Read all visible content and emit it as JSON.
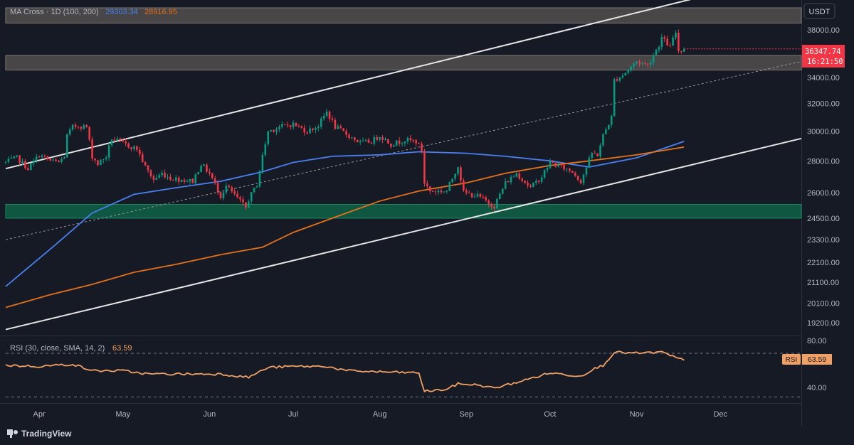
{
  "header": {
    "indicator_label": "MA Cross · 1D (100, 200)",
    "ma100_value": "29303.34",
    "ma200_value": "28916.95",
    "currency": "USDT"
  },
  "price_badge": {
    "price": "36347.74",
    "countdown": "16:21:50"
  },
  "rsi_panel": {
    "label": "RSI (30, close, SMA, 14, 2)",
    "value": "63.59",
    "badge_label": "RSI",
    "badge_value": "63.59",
    "upper_band_label": "80.00",
    "lower_band_label": "40.00"
  },
  "footer": {
    "brand": "TradingView"
  },
  "colors": {
    "background": "#161a25",
    "up": "#089981",
    "down": "#f23645",
    "ma100": "#4a7ff0",
    "ma200": "#e3701b",
    "rsi": "#f0a064",
    "channel": "#e6e6e6",
    "resistance_zone": "#5a5553",
    "support_zone": "#0e5e44"
  },
  "chart_data": {
    "type": "candlestick",
    "symbol_quote": "USDT",
    "timeframe": "1D",
    "y_axis_ticks": [
      "38000.00",
      "34000.00",
      "32000.00",
      "30000.00",
      "28000.00",
      "26000.00",
      "24500.00",
      "23300.00",
      "22100.00",
      "21100.00",
      "20100.00",
      "19200.00"
    ],
    "x_axis_ticks": [
      "Apr",
      "May",
      "Jun",
      "Jul",
      "Aug",
      "Sep",
      "Oct",
      "Nov",
      "Dec"
    ],
    "x_axis_dates": [
      "2023-04-01",
      "2023-05-01",
      "2023-06-01",
      "2023-07-01",
      "2023-08-01",
      "2023-09-01",
      "2023-10-01",
      "2023-11-01",
      "2023-12-01"
    ],
    "x_range": [
      "2023-03-20",
      "2023-12-30"
    ],
    "y_range": [
      18700,
      40200
    ],
    "log_scale": true,
    "grid": false,
    "price_path": [
      [
        "2023-03-20",
        27900
      ],
      [
        "2023-03-24",
        28200
      ],
      [
        "2023-03-28",
        27500
      ],
      [
        "2023-04-01",
        28400
      ],
      [
        "2023-04-05",
        28000
      ],
      [
        "2023-04-08",
        27900
      ],
      [
        "2023-04-10",
        28300
      ],
      [
        "2023-04-11",
        29700
      ],
      [
        "2023-04-13",
        30300
      ],
      [
        "2023-04-15",
        30400
      ],
      [
        "2023-04-18",
        30300
      ],
      [
        "2023-04-20",
        28300
      ],
      [
        "2023-04-22",
        27800
      ],
      [
        "2023-04-25",
        28300
      ],
      [
        "2023-04-27",
        29500
      ],
      [
        "2023-04-30",
        29250
      ],
      [
        "2023-05-03",
        29000
      ],
      [
        "2023-05-06",
        28800
      ],
      [
        "2023-05-09",
        27600
      ],
      [
        "2023-05-12",
        26800
      ],
      [
        "2023-05-15",
        27200
      ],
      [
        "2023-05-18",
        26900
      ],
      [
        "2023-05-22",
        26800
      ],
      [
        "2023-05-26",
        26700
      ],
      [
        "2023-05-29",
        27800
      ],
      [
        "2023-06-01",
        27200
      ],
      [
        "2023-06-05",
        25800
      ],
      [
        "2023-06-07",
        26400
      ],
      [
        "2023-06-10",
        25850
      ],
      [
        "2023-06-14",
        25100
      ],
      [
        "2023-06-15",
        25600
      ],
      [
        "2023-06-18",
        26500
      ],
      [
        "2023-06-20",
        28300
      ],
      [
        "2023-06-22",
        30000
      ],
      [
        "2023-06-26",
        30300
      ],
      [
        "2023-07-01",
        30500
      ],
      [
        "2023-07-06",
        30000
      ],
      [
        "2023-07-10",
        30400
      ],
      [
        "2023-07-13",
        31400
      ],
      [
        "2023-07-16",
        30300
      ],
      [
        "2023-07-20",
        29800
      ],
      [
        "2023-07-25",
        29200
      ],
      [
        "2023-07-29",
        29300
      ],
      [
        "2023-08-01",
        29700
      ],
      [
        "2023-08-05",
        29100
      ],
      [
        "2023-08-10",
        29400
      ],
      [
        "2023-08-14",
        29300
      ],
      [
        "2023-08-16",
        28700
      ],
      [
        "2023-08-17",
        26600
      ],
      [
        "2023-08-19",
        26100
      ],
      [
        "2023-08-25",
        26100
      ],
      [
        "2023-08-29",
        27700
      ],
      [
        "2023-08-31",
        26000
      ],
      [
        "2023-09-05",
        25800
      ],
      [
        "2023-09-11",
        25200
      ],
      [
        "2023-09-15",
        26600
      ],
      [
        "2023-09-19",
        27200
      ],
      [
        "2023-09-24",
        26300
      ],
      [
        "2023-09-28",
        27000
      ],
      [
        "2023-10-01",
        27900
      ],
      [
        "2023-10-05",
        27600
      ],
      [
        "2023-10-09",
        27300
      ],
      [
        "2023-10-12",
        26700
      ],
      [
        "2023-10-16",
        28500
      ],
      [
        "2023-10-18",
        28400
      ],
      [
        "2023-10-20",
        29700
      ],
      [
        "2023-10-23",
        31000
      ],
      [
        "2023-10-24",
        33800
      ],
      [
        "2023-10-27",
        34200
      ],
      [
        "2023-11-01",
        35300
      ],
      [
        "2023-11-05",
        35000
      ],
      [
        "2023-11-09",
        36700
      ],
      [
        "2023-11-10",
        37300
      ],
      [
        "2023-11-13",
        36500
      ],
      [
        "2023-11-15",
        37800
      ],
      [
        "2023-11-16",
        36200
      ],
      [
        "2023-11-18",
        36347.74
      ]
    ],
    "series": [
      {
        "name": "MA 100",
        "color": "#4a7ff0",
        "last": 29303.34,
        "points": [
          [
            "2023-03-20",
            20900
          ],
          [
            "2023-04-05",
            22800
          ],
          [
            "2023-04-20",
            24800
          ],
          [
            "2023-05-05",
            25900
          ],
          [
            "2023-05-20",
            26300
          ],
          [
            "2023-06-05",
            26700
          ],
          [
            "2023-06-20",
            27300
          ],
          [
            "2023-07-01",
            27900
          ],
          [
            "2023-07-15",
            28300
          ],
          [
            "2023-08-01",
            28400
          ],
          [
            "2023-08-15",
            28600
          ],
          [
            "2023-09-01",
            28500
          ],
          [
            "2023-09-15",
            28300
          ],
          [
            "2023-10-01",
            28000
          ],
          [
            "2023-10-15",
            27600
          ],
          [
            "2023-11-01",
            28200
          ],
          [
            "2023-11-18",
            29303.34
          ]
        ]
      },
      {
        "name": "MA 200",
        "color": "#e3701b",
        "last": 28916.95,
        "points": [
          [
            "2023-03-20",
            19900
          ],
          [
            "2023-04-05",
            20500
          ],
          [
            "2023-04-20",
            21000
          ],
          [
            "2023-05-05",
            21600
          ],
          [
            "2023-05-20",
            22000
          ],
          [
            "2023-06-05",
            22500
          ],
          [
            "2023-06-20",
            22900
          ],
          [
            "2023-07-01",
            23700
          ],
          [
            "2023-07-15",
            24500
          ],
          [
            "2023-08-01",
            25500
          ],
          [
            "2023-08-15",
            26100
          ],
          [
            "2023-09-01",
            26600
          ],
          [
            "2023-09-15",
            27200
          ],
          [
            "2023-10-01",
            27700
          ],
          [
            "2023-10-15",
            28000
          ],
          [
            "2023-11-01",
            28400
          ],
          [
            "2023-11-18",
            28916.95
          ]
        ]
      }
    ],
    "channel_lines": [
      {
        "role": "upper",
        "from": [
          "2023-03-20",
          27500
        ],
        "to": [
          "2023-12-01",
          41500
        ]
      },
      {
        "role": "lower",
        "from": [
          "2023-03-20",
          18900
        ],
        "to": [
          "2023-12-30",
          29500
        ]
      },
      {
        "role": "mid-dotted",
        "from": [
          "2023-03-20",
          23300
        ],
        "to": [
          "2023-12-30",
          35300
        ]
      }
    ],
    "zones": [
      {
        "role": "resistance",
        "y_from": 38600,
        "y_to": 40000
      },
      {
        "role": "resistance",
        "y_from": 34600,
        "y_to": 35800
      },
      {
        "role": "support",
        "y_from": 24500,
        "y_to": 25300
      }
    ],
    "rsi": {
      "label": "RSI (30, close, SMA, 14, 2)",
      "last": 63.59,
      "y_ticks": [
        "80.00",
        "40.00"
      ],
      "band_upper": 70,
      "band_lower": 30,
      "y_range": [
        25,
        85
      ],
      "points": [
        [
          "2023-03-20",
          59
        ],
        [
          "2023-04-01",
          58
        ],
        [
          "2023-04-13",
          60
        ],
        [
          "2023-04-20",
          54
        ],
        [
          "2023-05-01",
          54
        ],
        [
          "2023-05-10",
          51
        ],
        [
          "2023-05-25",
          51
        ],
        [
          "2023-06-05",
          51
        ],
        [
          "2023-06-15",
          48
        ],
        [
          "2023-06-22",
          57
        ],
        [
          "2023-07-01",
          58
        ],
        [
          "2023-07-13",
          58
        ],
        [
          "2023-07-20",
          54
        ],
        [
          "2023-08-01",
          53
        ],
        [
          "2023-08-15",
          52
        ],
        [
          "2023-08-17",
          35
        ],
        [
          "2023-08-25",
          37
        ],
        [
          "2023-08-29",
          42
        ],
        [
          "2023-09-05",
          41
        ],
        [
          "2023-09-11",
          38
        ],
        [
          "2023-09-20",
          44
        ],
        [
          "2023-10-01",
          52
        ],
        [
          "2023-10-12",
          49
        ],
        [
          "2023-10-16",
          55
        ],
        [
          "2023-10-20",
          59
        ],
        [
          "2023-10-24",
          71
        ],
        [
          "2023-11-01",
          70
        ],
        [
          "2023-11-10",
          71
        ],
        [
          "2023-11-15",
          66
        ],
        [
          "2023-11-18",
          63.59
        ]
      ]
    }
  }
}
